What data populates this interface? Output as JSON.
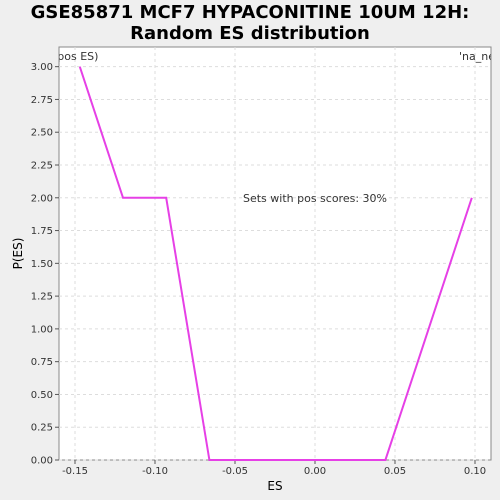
{
  "title_line1": "GSE85871 MCF7 HYPACONITINE 10UM 12H:",
  "title_line2": "Random ES distribution",
  "legend_left": "(pos ES)",
  "legend_right": "'na_ne",
  "colors": {
    "line": "#e640e6",
    "legend_left": "#cc3333",
    "legend_right": "#3333cc",
    "grid": "#dddddd"
  },
  "chart_data": {
    "type": "line",
    "xlabel": "ES",
    "ylabel": "P(ES)",
    "xlim": [
      -0.16,
      0.11
    ],
    "ylim": [
      0,
      3.15
    ],
    "xticks": [
      -0.15,
      -0.1,
      -0.05,
      0.0,
      0.05,
      0.1
    ],
    "xtick_labels": [
      "-0.15",
      "-0.10",
      "-0.05",
      "0.00",
      "0.05",
      "0.10"
    ],
    "yticks": [
      0,
      0.25,
      0.5,
      0.75,
      1.0,
      1.25,
      1.5,
      1.75,
      2.0,
      2.25,
      2.5,
      2.75,
      3.0
    ],
    "ytick_labels": [
      "0.00",
      "0.25",
      "0.50",
      "0.75",
      "1.00",
      "1.25",
      "1.50",
      "1.75",
      "2.00",
      "2.25",
      "2.50",
      "2.75",
      "3.00"
    ],
    "grid": true,
    "annotation": "Sets with pos scores: 30%",
    "series": [
      {
        "x": [
          -0.147,
          -0.12,
          -0.093,
          -0.066,
          0.044,
          0.071,
          0.098
        ],
        "y": [
          3.0,
          2.0,
          2.0,
          0.0,
          0.0,
          1.0,
          2.0
        ]
      }
    ]
  }
}
